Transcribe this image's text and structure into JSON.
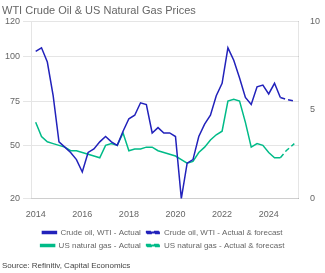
{
  "chart_data": {
    "type": "line",
    "title": "WTI Crude Oil & US Natural Gas Prices",
    "source": "Source: Refinitiv, Capital Economics",
    "x": [
      2014.0,
      2014.25,
      2014.5,
      2014.75,
      2015.0,
      2015.25,
      2015.5,
      2015.75,
      2016.0,
      2016.25,
      2016.5,
      2016.75,
      2017.0,
      2017.25,
      2017.5,
      2017.75,
      2018.0,
      2018.25,
      2018.5,
      2018.75,
      2019.0,
      2019.25,
      2019.5,
      2019.75,
      2020.0,
      2020.25,
      2020.5,
      2020.75,
      2021.0,
      2021.25,
      2021.5,
      2021.75,
      2022.0,
      2022.25,
      2022.5,
      2022.75,
      2023.0,
      2023.25,
      2023.5,
      2023.75,
      2024.0,
      2024.25,
      2024.5,
      2024.75,
      2025.1
    ],
    "series": [
      {
        "name": "Crude oil, WTI - Actual",
        "color": "#2222bb",
        "line_style": "solid",
        "axis": "y",
        "values": [
          103,
          105,
          97,
          78,
          52,
          49,
          46,
          42,
          35,
          46,
          48,
          52,
          55,
          52,
          50,
          58,
          65,
          67,
          74,
          73,
          57,
          60,
          57,
          57,
          55,
          20,
          40,
          42,
          55,
          62,
          67,
          78,
          85,
          105,
          98,
          88,
          77,
          73,
          83,
          84,
          79,
          85,
          77,
          null,
          null
        ]
      },
      {
        "name": "Crude oil, WTI - Actual & forecast",
        "color": "#2222bb",
        "line_style": "dashed",
        "axis": "y",
        "values": [
          null,
          null,
          null,
          null,
          null,
          null,
          null,
          null,
          null,
          null,
          null,
          null,
          null,
          null,
          null,
          null,
          null,
          null,
          null,
          null,
          null,
          null,
          null,
          null,
          null,
          null,
          null,
          null,
          null,
          null,
          null,
          null,
          null,
          null,
          null,
          null,
          null,
          null,
          null,
          null,
          null,
          null,
          77,
          76,
          75
        ]
      },
      {
        "name": "US natural gas - Actual",
        "color": "#00bb88",
        "line_style": "solid",
        "axis": "y2",
        "values": [
          4.3,
          3.5,
          3.2,
          3.1,
          3.0,
          2.9,
          2.7,
          2.7,
          2.6,
          2.5,
          2.4,
          2.3,
          3.0,
          3.1,
          3.0,
          3.7,
          2.7,
          2.8,
          2.8,
          2.9,
          2.9,
          2.7,
          2.6,
          2.5,
          2.4,
          2.2,
          2.0,
          2.1,
          2.6,
          2.9,
          3.3,
          3.6,
          3.8,
          5.5,
          5.6,
          5.5,
          4.3,
          2.9,
          3.1,
          3.0,
          2.6,
          2.3,
          2.3,
          null,
          null
        ]
      },
      {
        "name": "US natural gas - Actual & forecast",
        "color": "#00bb88",
        "line_style": "dashed",
        "axis": "y2",
        "values": [
          null,
          null,
          null,
          null,
          null,
          null,
          null,
          null,
          null,
          null,
          null,
          null,
          null,
          null,
          null,
          null,
          null,
          null,
          null,
          null,
          null,
          null,
          null,
          null,
          null,
          null,
          null,
          null,
          null,
          null,
          null,
          null,
          null,
          null,
          null,
          null,
          null,
          null,
          null,
          null,
          null,
          null,
          2.3,
          2.7,
          3.1
        ]
      }
    ],
    "xlim": [
      2013.8,
      2025.3
    ],
    "xticks": [
      2014,
      2016,
      2018,
      2020,
      2022,
      2024
    ],
    "ylim": [
      20,
      120
    ],
    "yticks": [
      20,
      50,
      75,
      100,
      120
    ],
    "y2lim": [
      0,
      10
    ],
    "y2ticks": [
      0,
      5,
      10
    ],
    "grid": true,
    "legend": "bottom"
  }
}
